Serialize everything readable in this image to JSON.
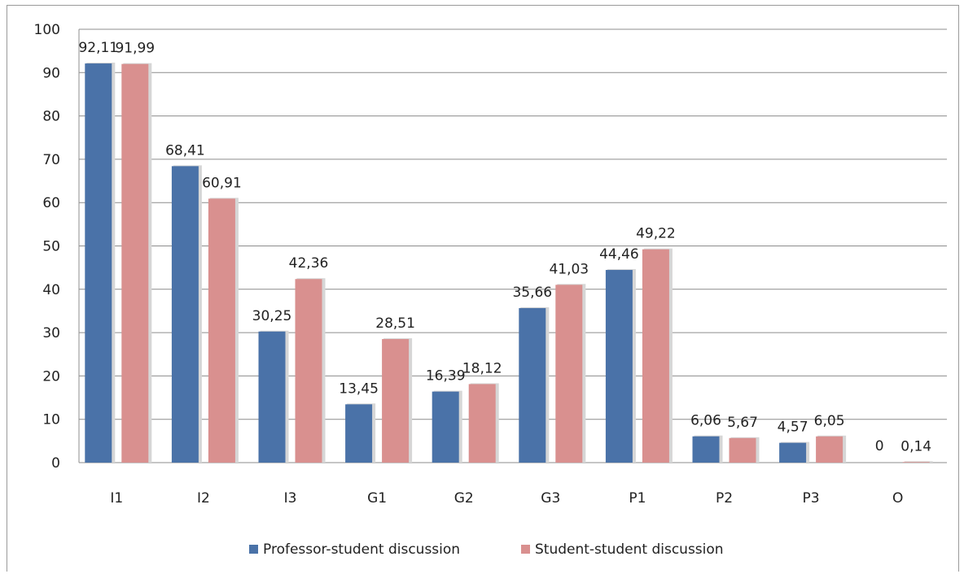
{
  "chart_data": {
    "type": "bar",
    "categories": [
      "I1",
      "I2",
      "I3",
      "G1",
      "G2",
      "G3",
      "P1",
      "P2",
      "P3",
      "O"
    ],
    "series": [
      {
        "name": "Professor-student discussion",
        "color": "#4a72a8",
        "values": [
          92.11,
          68.41,
          30.25,
          13.45,
          16.39,
          35.66,
          44.46,
          6.06,
          4.57,
          0
        ],
        "labels": [
          "92,11",
          "68,41",
          "30,25",
          "13,45",
          "16,39",
          "35,66",
          "44,46",
          "6,06",
          "4,57",
          "0"
        ]
      },
      {
        "name": "Student-student discussion",
        "color": "#d9908f",
        "values": [
          91.99,
          60.91,
          42.36,
          28.51,
          18.12,
          41.03,
          49.22,
          5.67,
          6.05,
          0.14
        ],
        "labels": [
          "91,99",
          "60,91",
          "42,36",
          "28,51",
          "18,12",
          "41,03",
          "49,22",
          "5,67",
          "6,05",
          "0,14"
        ]
      }
    ],
    "title": "",
    "xlabel": "",
    "ylabel": "",
    "ylim": [
      0,
      100
    ],
    "yticks": [
      "0",
      "10",
      "20",
      "30",
      "40",
      "50",
      "60",
      "70",
      "80",
      "90",
      "100"
    ],
    "grid": true,
    "legend_position": "bottom"
  }
}
